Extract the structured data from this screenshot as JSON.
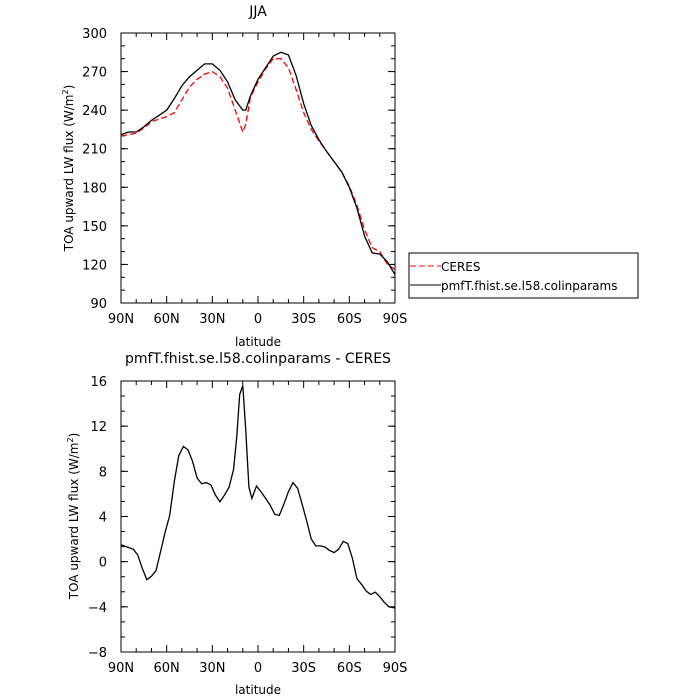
{
  "chart_data": [
    {
      "type": "line",
      "title": "JJA",
      "xlabel": "latitude",
      "ylabel": "TOA upward LW flux (W/m",
      "ylabel_sup": "2",
      "ylabel_close": ")",
      "xlim": [
        -90,
        90
      ],
      "ylim": [
        90,
        300
      ],
      "xticks": [
        -90,
        -60,
        -30,
        0,
        30,
        60,
        90
      ],
      "xtick_labels": [
        "90N",
        "60N",
        "30N",
        "0",
        "30S",
        "60S",
        "90S"
      ],
      "yticks": [
        90,
        120,
        150,
        180,
        210,
        240,
        270,
        300
      ],
      "ytick_labels": [
        "90",
        "120",
        "150",
        "180",
        "210",
        "240",
        "270",
        "300"
      ],
      "grid": false,
      "legend_position": "right-outside-bottom",
      "x": [
        -90,
        -85,
        -80,
        -75,
        -70,
        -65,
        -60,
        -55,
        -50,
        -45,
        -40,
        -35,
        -30,
        -25,
        -20,
        -15,
        -10,
        -8,
        -5,
        0,
        5,
        10,
        15,
        20,
        25,
        30,
        35,
        40,
        45,
        50,
        55,
        60,
        65,
        70,
        75,
        80,
        85,
        90
      ],
      "series": [
        {
          "name": "CERES",
          "color": "#ff0000",
          "dash": "6,3",
          "values": [
            220,
            221,
            222,
            226,
            231,
            233,
            235,
            238,
            248,
            258,
            264,
            268,
            270,
            266,
            257,
            240,
            223,
            229,
            250,
            262,
            272,
            280,
            280,
            273,
            256,
            238,
            225,
            216,
            208,
            200,
            192,
            181,
            166,
            147,
            133,
            130,
            120,
            116
          ]
        },
        {
          "name": "pmfT.fhist.se.l58.colinparams",
          "color": "#000000",
          "dash": "",
          "values": [
            221,
            223,
            223,
            227,
            232,
            236,
            240,
            249,
            259,
            266,
            271,
            276,
            276,
            271,
            262,
            248,
            240,
            240,
            251,
            264,
            273,
            282,
            285,
            283,
            267,
            245,
            228,
            217,
            208,
            200,
            192,
            180,
            164,
            142,
            129,
            128,
            122,
            112
          ]
        }
      ]
    },
    {
      "type": "line",
      "title": "pmfT.fhist.se.l58.colinparams - CERES",
      "xlabel": "latitude",
      "ylabel": "TOA upward LW flux (W/m",
      "ylabel_sup": "2",
      "ylabel_close": ")",
      "xlim": [
        -90,
        90
      ],
      "ylim": [
        -8,
        16
      ],
      "xticks": [
        -90,
        -60,
        -30,
        0,
        30,
        60,
        90
      ],
      "xtick_labels": [
        "90N",
        "60N",
        "30N",
        "0",
        "30S",
        "60S",
        "90S"
      ],
      "yticks": [
        -8,
        -4,
        0,
        4,
        8,
        12,
        16
      ],
      "ytick_labels": [
        "−8",
        "−4",
        "0",
        "4",
        "8",
        "12",
        "16"
      ],
      "grid": false,
      "series": [
        {
          "color": "#000000",
          "dash": "",
          "x": [
            -90,
            -86,
            -82,
            -79,
            -76,
            -73,
            -70,
            -67,
            -64,
            -61,
            -58,
            -55,
            -52,
            -49,
            -46,
            -43,
            -40,
            -37,
            -34,
            -31,
            -28,
            -25,
            -22,
            -19,
            -16,
            -14,
            -12,
            -10,
            -8,
            -6,
            -4,
            -1,
            2,
            5,
            8,
            11,
            14,
            17,
            20,
            23,
            26,
            29,
            32,
            35,
            38,
            41,
            44,
            47,
            50,
            53,
            56,
            59,
            62,
            65,
            68,
            71,
            74,
            77,
            80,
            83,
            86,
            90
          ],
          "values": [
            1.5,
            1.3,
            1.1,
            0.6,
            -0.6,
            -1.6,
            -1.3,
            -0.8,
            0.9,
            2.6,
            4.1,
            7.1,
            9.4,
            10.2,
            9.9,
            8.9,
            7.4,
            6.9,
            7.0,
            6.8,
            5.9,
            5.3,
            5.9,
            6.6,
            8.2,
            11.0,
            14.8,
            15.6,
            11.6,
            6.6,
            5.6,
            6.7,
            6.2,
            5.6,
            5.0,
            4.2,
            4.1,
            5.1,
            6.2,
            7.0,
            6.5,
            5.1,
            3.6,
            2.0,
            1.4,
            1.4,
            1.3,
            1.0,
            0.8,
            1.1,
            1.8,
            1.6,
            0.3,
            -1.5,
            -2.0,
            -2.6,
            -2.9,
            -2.7,
            -3.1,
            -3.6,
            -4.0,
            -4.1
          ]
        }
      ]
    }
  ]
}
